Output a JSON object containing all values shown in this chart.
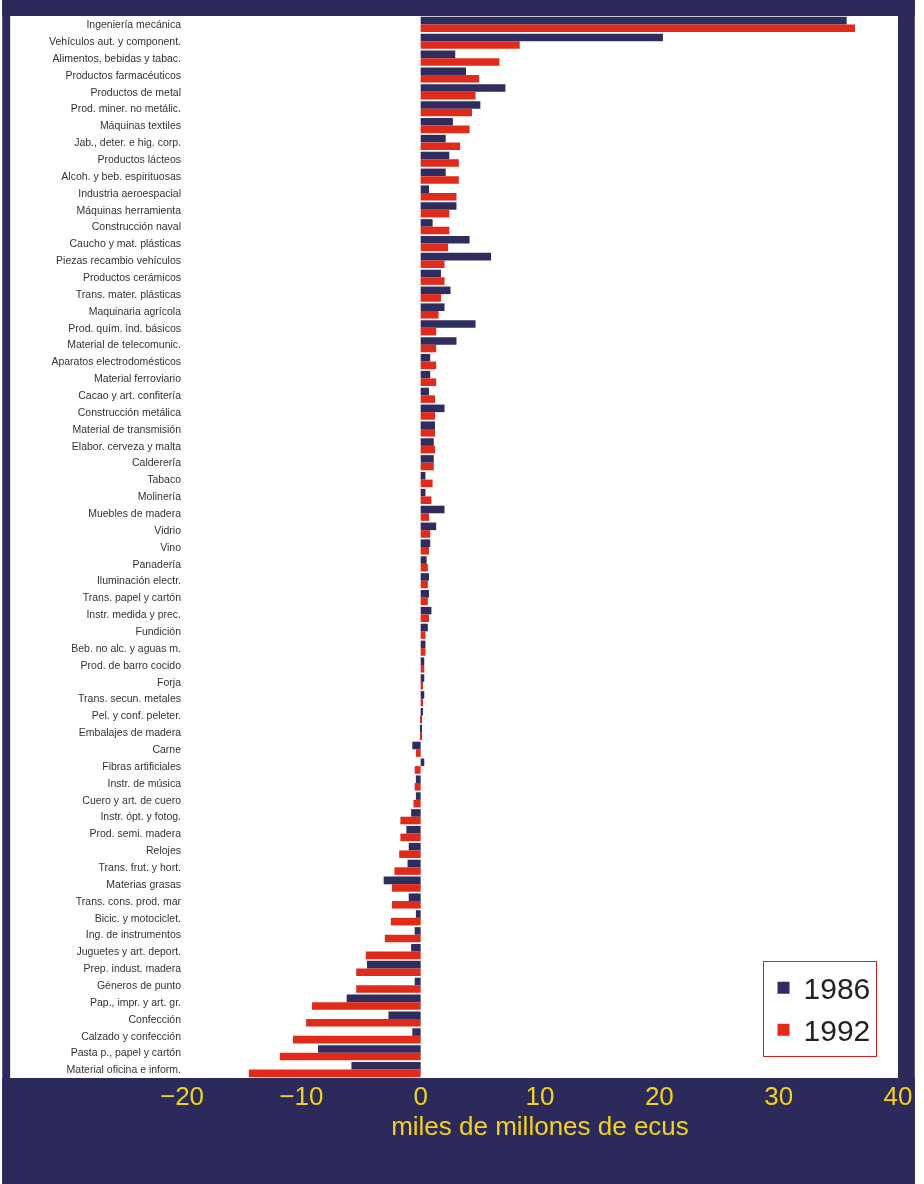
{
  "chart_data": {
    "type": "bar",
    "orientation": "horizontal",
    "xlabel": "miles de millones de ecus",
    "categories": [
      "Ingeniería mecánica",
      "Vehículos aut. y component.",
      "Alimentos, bebidas y tabac.",
      "Productos farmacéuticos",
      "Productos de metal",
      "Prod. miner. no metálic.",
      "Máquinas textiles",
      "Jab., deter. e hig. corp.",
      "Productos lácteos",
      "Alcoh. y beb. espirituosas",
      "Industria aeroespacial",
      "Máquinas herramienta",
      "Construcción naval",
      "Caucho y mat. plásticas",
      "Piezas recambio vehículos",
      "Productos cerámicos",
      "Trans. mater. plásticas",
      "Maquinaria agrícola",
      "Prod. quím. ind. básicos",
      "Material de telecomunic.",
      "Aparatos electrodomésticos",
      "Material ferroviario",
      "Cacao y art. confitería",
      "Construcción metálica",
      "Material de transmisión",
      "Elabor. cerveza y malta",
      "Calderería",
      "Tabaco",
      "Molinería",
      "Muebles de madera",
      "Vidrio",
      "Vino",
      "Panadería",
      "Iluminación electr.",
      "Trans. papel y cartón",
      "Instr. medida y prec.",
      "Fundición",
      "Beb. no alc. y aguas m.",
      "Prod. de barro cocido",
      "Forja",
      "Trans. secun. metales",
      "Pel. y conf. peleter.",
      "Embalajes de madera",
      "Carne",
      "Fibras artificiales",
      "Instr. de música",
      "Cuero y art. de cuero",
      "Instr. ópt. y fotog.",
      "Prod. semi. madera",
      "Relojes",
      "Trans. frut. y hort.",
      "Materias grasas",
      "Trans. cons. prod. mar",
      "Bicic. y motociclet.",
      "Ing. de instrumentos",
      "Juguetes y art. deport.",
      "Prep. indust. madera",
      "Géneros de punto",
      "Pap., impr. y art. gr.",
      "Confección",
      "Calzado y confección",
      "Pasta p., papel y cartón",
      "Material oficina e inform."
    ],
    "series": [
      {
        "name": "1986",
        "color": "#2e2d5e",
        "values": [
          35.7,
          20.3,
          2.9,
          3.8,
          7.1,
          5.0,
          2.7,
          2.1,
          2.4,
          2.1,
          0.7,
          3.0,
          1.0,
          4.1,
          5.9,
          1.7,
          2.5,
          2.0,
          4.6,
          3.0,
          0.8,
          0.8,
          0.7,
          2.0,
          1.2,
          1.1,
          1.1,
          0.4,
          0.4,
          2.0,
          1.3,
          0.8,
          0.5,
          0.7,
          0.7,
          0.9,
          0.6,
          0.4,
          0.3,
          0.3,
          0.3,
          0.2,
          0.1,
          -0.7,
          0.3,
          -0.4,
          -0.4,
          -0.8,
          -1.2,
          -1.0,
          -1.1,
          -3.1,
          -1.0,
          -0.4,
          -0.5,
          -0.8,
          -4.5,
          -0.5,
          -6.2,
          -2.7,
          -0.7,
          -8.6,
          -5.8
        ]
      },
      {
        "name": "1992",
        "color": "#e02a1a",
        "values": [
          36.4,
          8.3,
          6.6,
          4.9,
          4.6,
          4.3,
          4.1,
          3.3,
          3.2,
          3.2,
          3.0,
          2.4,
          2.4,
          2.3,
          2.0,
          2.0,
          1.7,
          1.5,
          1.3,
          1.3,
          1.3,
          1.3,
          1.2,
          1.2,
          1.2,
          1.2,
          1.1,
          1.0,
          0.9,
          0.7,
          0.8,
          0.7,
          0.6,
          0.6,
          0.6,
          0.7,
          0.4,
          0.4,
          0.3,
          0.2,
          0.2,
          0.1,
          0.1,
          -0.4,
          -0.5,
          -0.5,
          -0.6,
          -1.7,
          -1.7,
          -1.8,
          -2.2,
          -2.4,
          -2.4,
          -2.5,
          -3.0,
          -4.6,
          -5.4,
          -5.4,
          -9.1,
          -9.6,
          -10.7,
          -11.8,
          -14.4
        ]
      }
    ],
    "xlim": [
      -20,
      40
    ],
    "xticks": [
      -20,
      -10,
      0,
      10,
      20,
      30,
      40
    ],
    "legend": "bottom right"
  }
}
